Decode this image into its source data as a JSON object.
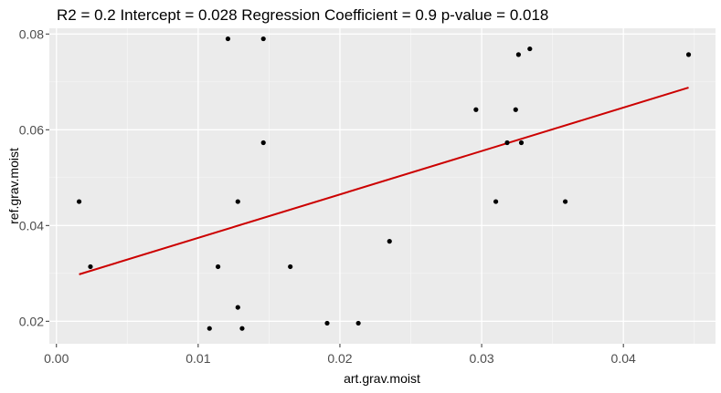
{
  "chart_data": {
    "type": "scatter",
    "title": "R2 =  0.2 Intercept = 0.028  Regression Coefficient = 0.9  p-value = 0.018",
    "xlabel": "art.grav.moist",
    "ylabel": "ref.grav.moist",
    "xlim": [
      -0.0005,
      0.0465
    ],
    "ylim": [
      0.0153,
      0.0812
    ],
    "x_ticks": [
      0.0,
      0.01,
      0.02,
      0.03,
      0.04
    ],
    "x_tick_labels": [
      "0.00",
      "0.01",
      "0.02",
      "0.03",
      "0.04"
    ],
    "y_ticks": [
      0.02,
      0.04,
      0.06,
      0.08
    ],
    "y_tick_labels": [
      "0.02",
      "0.04",
      "0.06",
      "0.08"
    ],
    "grid": true,
    "background_color": "#ebebeb",
    "point_color": "#000000",
    "regression_color": "#cc0000",
    "points": [
      {
        "x": 0.0016,
        "y": 0.045
      },
      {
        "x": 0.0024,
        "y": 0.0314
      },
      {
        "x": 0.0108,
        "y": 0.0185
      },
      {
        "x": 0.0114,
        "y": 0.0314
      },
      {
        "x": 0.0121,
        "y": 0.079
      },
      {
        "x": 0.0128,
        "y": 0.045
      },
      {
        "x": 0.0128,
        "y": 0.0229
      },
      {
        "x": 0.0131,
        "y": 0.0185
      },
      {
        "x": 0.0146,
        "y": 0.079
      },
      {
        "x": 0.0146,
        "y": 0.0573
      },
      {
        "x": 0.0165,
        "y": 0.0314
      },
      {
        "x": 0.0191,
        "y": 0.0196
      },
      {
        "x": 0.0213,
        "y": 0.0196
      },
      {
        "x": 0.0235,
        "y": 0.0367
      },
      {
        "x": 0.0296,
        "y": 0.0642
      },
      {
        "x": 0.031,
        "y": 0.045
      },
      {
        "x": 0.0318,
        "y": 0.0573
      },
      {
        "x": 0.0324,
        "y": 0.0642
      },
      {
        "x": 0.0326,
        "y": 0.0757
      },
      {
        "x": 0.0328,
        "y": 0.0573
      },
      {
        "x": 0.0334,
        "y": 0.0769
      },
      {
        "x": 0.0359,
        "y": 0.045
      },
      {
        "x": 0.0446,
        "y": 0.0757
      }
    ],
    "regression_line": {
      "x": [
        0.0016,
        0.0446
      ],
      "y": [
        0.0298,
        0.0688
      ]
    }
  }
}
